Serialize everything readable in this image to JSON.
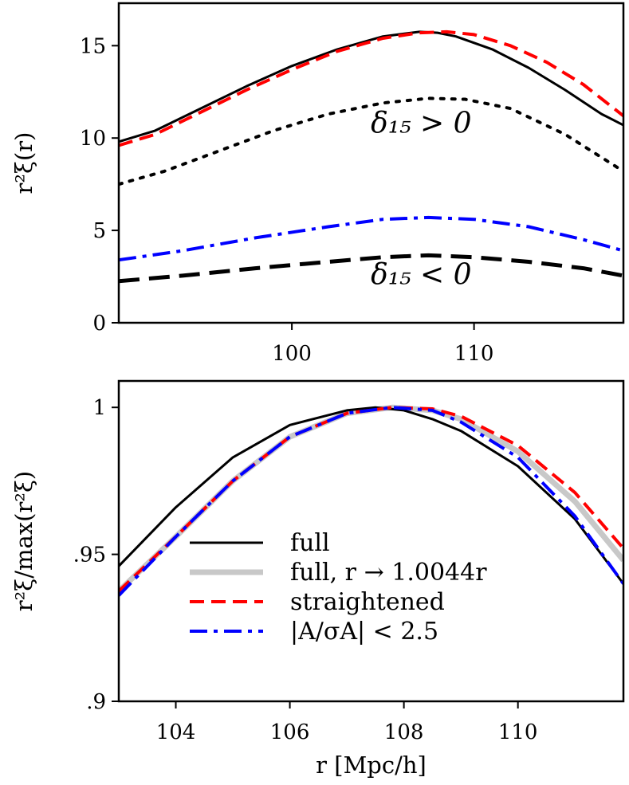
{
  "chart_data": [
    {
      "type": "line",
      "xlim": [
        90.5,
        118.2
      ],
      "ylim": [
        0,
        17.3
      ],
      "xticks": [
        100,
        110
      ],
      "yticks": [
        0,
        5,
        10,
        15
      ],
      "xtick_labels": [
        "100",
        "110"
      ],
      "ytick_labels": [
        "0",
        "5",
        "10",
        "15"
      ],
      "ylabel": "r²ξ(r)",
      "annotations": [
        {
          "text": "δ₁₅ > 0",
          "x": 107.1,
          "y": 10.3
        },
        {
          "text": "δ₁₅ < 0",
          "x": 107.1,
          "y": 2.1
        }
      ],
      "series": [
        {
          "name": "full",
          "color": "#000000",
          "dash": "solid",
          "width": 3,
          "x": [
            90.5,
            92.5,
            95,
            97.5,
            100,
            102.5,
            105,
            107,
            108,
            109,
            111,
            113,
            115,
            117,
            118.2
          ],
          "y": [
            9.8,
            10.4,
            11.6,
            12.8,
            13.9,
            14.8,
            15.5,
            15.75,
            15.7,
            15.5,
            14.8,
            13.8,
            12.6,
            11.3,
            10.7
          ]
        },
        {
          "name": "straightened",
          "color": "#ff0000",
          "dash": "dashed",
          "width": 4,
          "x": [
            90.5,
            92.5,
            95,
            97.5,
            100,
            102.5,
            105,
            107,
            108.5,
            110,
            112,
            114,
            116,
            118.2
          ],
          "y": [
            9.6,
            10.2,
            11.4,
            12.6,
            13.7,
            14.7,
            15.4,
            15.7,
            15.75,
            15.6,
            15.0,
            14.1,
            12.9,
            11.2
          ]
        },
        {
          "name": "δ₁₅ > 0",
          "color": "#000000",
          "dash": "dotted",
          "width": 4,
          "x": [
            90.5,
            93,
            96,
            99,
            102,
            105,
            107.5,
            109.5,
            112,
            115,
            118.2
          ],
          "y": [
            7.5,
            8.2,
            9.3,
            10.4,
            11.3,
            11.9,
            12.15,
            12.1,
            11.6,
            10.2,
            8.2
          ]
        },
        {
          "name": "|A/σA| < 2.5",
          "color": "#0000ff",
          "dash": "dashdot",
          "width": 4,
          "x": [
            90.5,
            94,
            98,
            102,
            105,
            107.5,
            110,
            113,
            116,
            118.2
          ],
          "y": [
            3.4,
            3.9,
            4.6,
            5.2,
            5.6,
            5.7,
            5.6,
            5.2,
            4.5,
            3.9
          ]
        },
        {
          "name": "δ₁₅ < 0",
          "color": "#000000",
          "dash": "longdash",
          "width": 5,
          "x": [
            90.5,
            94,
            98,
            102,
            105,
            107.5,
            110,
            113,
            116,
            118.2
          ],
          "y": [
            2.25,
            2.55,
            2.95,
            3.3,
            3.55,
            3.65,
            3.55,
            3.3,
            2.95,
            2.55
          ]
        }
      ]
    },
    {
      "type": "line",
      "xlim": [
        103,
        111.85
      ],
      "ylim": [
        0.9,
        1.009
      ],
      "xticks": [
        104,
        106,
        108,
        110
      ],
      "yticks": [
        0.9,
        0.95,
        1.0
      ],
      "xtick_labels": [
        "104",
        "106",
        "108",
        "110"
      ],
      "ytick_labels": [
        ".9",
        ".95",
        "1"
      ],
      "xlabel": "r [Mpc/h]",
      "ylabel": "r²ξ/max(r²ξ)",
      "legend": "lower-left",
      "series": [
        {
          "name": "full, r → 1.0044r",
          "label": "full, r → 1.0044r",
          "color": "#c8c8c8",
          "dash": "solid",
          "width": 7,
          "x": [
            103,
            104,
            105,
            106,
            107,
            107.8,
            108.5,
            109,
            110,
            111,
            111.85
          ],
          "y": [
            0.9375,
            0.956,
            0.975,
            0.99,
            0.998,
            1.0,
            0.999,
            0.996,
            0.985,
            0.968,
            0.948
          ]
        },
        {
          "name": "full",
          "label": "full",
          "color": "#000000",
          "dash": "solid",
          "width": 3,
          "x": [
            103,
            104,
            105,
            106,
            107,
            107.5,
            108,
            108.5,
            109,
            110,
            111,
            111.85
          ],
          "y": [
            0.946,
            0.966,
            0.983,
            0.994,
            0.999,
            1.0,
            0.999,
            0.996,
            0.992,
            0.98,
            0.962,
            0.94
          ]
        },
        {
          "name": "straightened",
          "label": "straightened",
          "color": "#ff0000",
          "dash": "dashed",
          "width": 4,
          "x": [
            103,
            104,
            105,
            106,
            107,
            107.8,
            108.5,
            109,
            110,
            111,
            111.85
          ],
          "y": [
            0.9375,
            0.956,
            0.975,
            0.99,
            0.998,
            1.0,
            0.9995,
            0.997,
            0.987,
            0.971,
            0.952
          ]
        },
        {
          "name": "|A/σA| < 2.5",
          "label": "|A/σA| < 2.5",
          "color": "#0000ff",
          "dash": "dashdot",
          "width": 4,
          "x": [
            103,
            104,
            105,
            106,
            107,
            107.8,
            108.5,
            109,
            110,
            111,
            111.85
          ],
          "y": [
            0.936,
            0.956,
            0.975,
            0.99,
            0.998,
            1.0,
            0.999,
            0.995,
            0.983,
            0.963,
            0.94
          ]
        }
      ],
      "legend_order": [
        "full",
        "full, r → 1.0044r",
        "straightened",
        "|A/σA| < 2.5"
      ]
    }
  ]
}
